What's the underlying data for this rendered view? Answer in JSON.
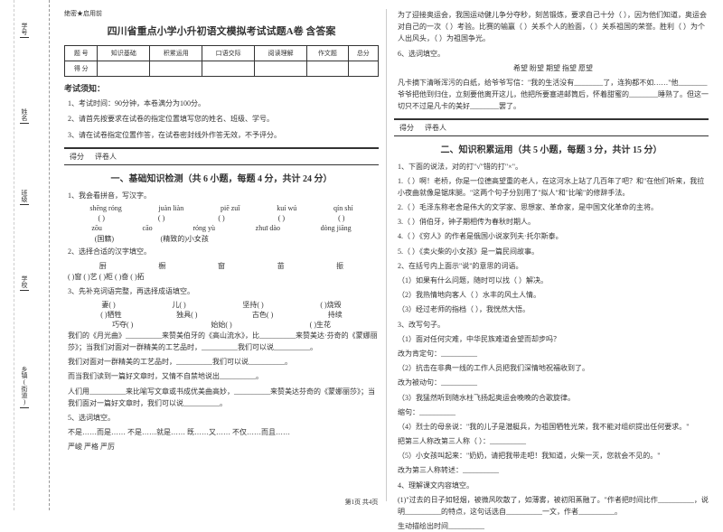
{
  "margin": {
    "l1": "题",
    "l2": "学号",
    "l3": "姓名",
    "l4": "班级",
    "l5": "学校",
    "l6": "乡镇(街道)",
    "side1": "答",
    "side2": "本",
    "side3": "内",
    "side4": "线",
    "side5": "封",
    "side6": "密"
  },
  "secret": "绝密★启用前",
  "title": "四川省重点小学小升初语文模拟考试试题A卷 含答案",
  "table": {
    "h": [
      "题 号",
      "知识基础",
      "积累运用",
      "口语交际",
      "阅读理解",
      "作文题",
      "总分"
    ],
    "r": "得 分"
  },
  "noticeTitle": "考试须知：",
  "notices": [
    "1、考试时间：90分钟，本卷满分为100分。",
    "2、请首先按要求在试卷的指定位置填写您的姓名、班级、学号。",
    "3、请在试卷指定位置作答，在试卷密封线外作答无效，不予评分。"
  ],
  "grade": {
    "a": "得分",
    "b": "评卷人"
  },
  "s1": {
    "title": "一、基础知识检测（共 6 小题，每题 4 分，共计 24 分）",
    "q1": "1、我会看拼音，写汉字。",
    "pinyin": [
      "shēng róng",
      "juàn liàn",
      "piē zuǐ",
      "kuí wú",
      "qín shí"
    ],
    "pinyin2": [
      "zōu",
      "cāo",
      "róng yù",
      "zhuī dào",
      "dòng jiāng"
    ],
    "prefix1": "(国籍)",
    "prefix2": "(精致的)小女孩",
    "q2": "2、选择合适的汉字填空。",
    "chars": [
      "厨",
      "橱",
      "窗",
      "苗",
      "振"
    ],
    "line2a": "(    )窗    (    )艺    (    )柜    (    )奋    (    )拓",
    "q3": "3、先补充词语完整，再选择成语填空。",
    "w3": [
      [
        "妻(    )",
        "儿(    )",
        "坚持(    )",
        "(    )烧毁"
      ],
      [
        "(    )牺牲",
        "独具(    )",
        "古色(    )",
        "持续"
      ],
      [
        "巧夺(    )",
        "始始(    )",
        "(    )生花",
        ""
      ]
    ],
    "q3b": "我们对面对一群精美的工艺品时，__________我们可以说__________。",
    "q3c": "而当我们读到一篇好文章时，又情不自禁地说出__________。",
    "q3d": "人们用__________来比喻写文章或书成优美曲高妙，__________来赞美达芬奇的《蒙娜丽莎》；当我们面对一篇好文章时，我们可以说__________。",
    "q3e": "我们的《月光曲》__________来赞美伯牙的《高山流水》，比__________来赞美达·芬奇的《蒙娜丽莎》；当我们对面对一群精美的工艺品时，__________我们可以说__________。",
    "q4": "5、选词填空。",
    "w4": "不是……而是……    不是……就是……    既……又……    不仅……而且……",
    "w4b": "    严峻    严格    严厉"
  },
  "col2": {
    "p1": "为了迎接奥运会，我国运动健儿争分夺秒，刻苦锻炼，要求自己十分（    ），因为他们知道，奥运会对自己的一次（    ）考验。比赛的输赢（    ）关系个人的脸面，（    ）关系祖国的荣誉。胜利（    ）为个人出风头，（    ）为祖国争光。",
    "q6": "6、选词填空。",
    "w6": "希望    盼望    期望    指望    愿望",
    "p6": "    凡卡摘下清晰浑污的白纸，给爷爷写信：\"我的生活没有________了，连狗都不如……\"他________爷爷把他到归住，立刻要他离开这儿，他把所要塞进邮筒后，怀着甜蜜的________睡熟了。但这一切只不过是凡卡的美好________罢了。",
    "s2title": "二、知识积累运用（共 5 小题，每题 3 分，共计 15 分）",
    "q1": "1、下面的说法，对的打\"√\"错的打\"×\"。",
    "q1a": "1.（    ）啊！老桥，你是一位德高望重的老人，在这河水上站了几百年了吧？和\"在他们听来，我拉小夜曲就像是锯床腿。\"这两个句子分别用了\"拟人\"和\"比喻\"的修辞手法。",
    "q1b": "2.（    ）毛泽东称老舍是伟大的文学家、思想家、革命家，是中国文化革命的主将。",
    "q1c": "3.（    ）俏伯牙，钟子期相传为春秋时期人。",
    "q1d": "4.（    ）《穷人》的作者是俄国小说家列夫·托尔斯泰。",
    "q1e": "5.（    ）《卖火柴的小女孩》是一篇民间故事。",
    "q2": "2、在括号内上面示\"说\"的意思的词语。",
    "q2a": "（1）如果有什么问题，随时可以找（    ）解决。",
    "q2b": "（2）我热情地向客人（    ）水丰的风土人情。",
    "q2c": "（3）经过老师的指档（    ），我恍然大悟。",
    "q3": "3、改写句子。",
    "q3a": "（1）面对任何灾难，中华民族难道会望而却步吗？",
    "q3aa": "改为肯定句：__________",
    "q3b": "（2）抗击在非典一线的工作人员把我们深情地祝福收到了。",
    "q3bb": "改为被动句：__________",
    "q3c": "（3）我猛然听到随水柱飞扬起奥运会晚晚的合歌旋律。",
    "q3cc": "缩句：__________",
    "q3d": "（4）烈士的母亲说：\"我的儿子是潜艇兵，为祖国牺牲光荣，我不能对组织提出任何要求。\"",
    "q3dd": "    把第三人称改第三人称（    ）：__________",
    "q3e": "（5）小女孩叫起来：\"奶奶，请把我带走吧！我知道，火柴一灭，您就会不见的。\"",
    "q3ee": "    改为第三人称转述：__________",
    "q4": "4、理解课文内容填空。",
    "q4a": "(1)\"过去的日子如轻烟，被微风吹散了，如薄雾，被初阳蒸融了。\"作者把时间比作__________，说明__________的特点，这句话选自__________一文，作者__________。",
    "q4b": "生动描绘出时间__________"
  },
  "footer": "第1页 共4页"
}
